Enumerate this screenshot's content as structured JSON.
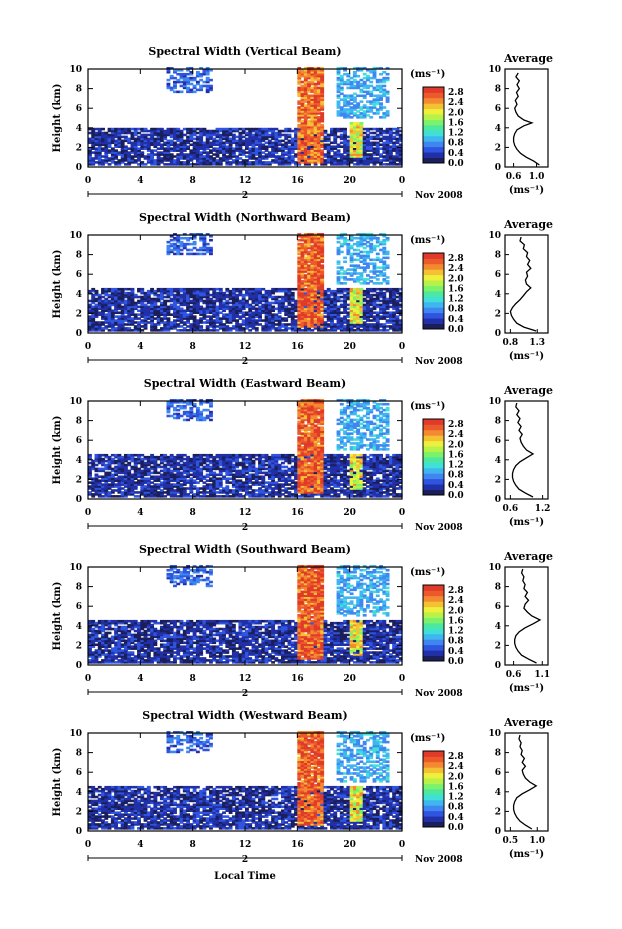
{
  "figure": {
    "xlabel": "Local Time",
    "date_label": "Nov 2008",
    "day_label": "2",
    "unit_label": "(ms⁻¹)",
    "avg_title": "Average",
    "avg_xlabel": "(ms⁻¹)"
  },
  "colors": [
    "#1a1f5c",
    "#2230a8",
    "#2f55e0",
    "#3f86f0",
    "#3fb6f0",
    "#40e0d8",
    "#4ce8a0",
    "#7cf26a",
    "#b6f24a",
    "#eef03c",
    "#f4c034",
    "#f48a30",
    "#ec5a2c",
    "#e03a2a"
  ],
  "chart_data": [
    {
      "type": "heatmap",
      "title": "Spectral Width (Vertical Beam)",
      "ylabel": "Height (km)",
      "x_ticks": [
        "0",
        "4",
        "8",
        "12",
        "16",
        "20",
        "0"
      ],
      "y_ticks": [
        "0",
        "2",
        "4",
        "6",
        "8",
        "10"
      ],
      "xlim": [
        0,
        24
      ],
      "ylim": [
        0,
        10
      ],
      "colorbar": {
        "ticks": [
          "0.0",
          "0.4",
          "0.8",
          "1.2",
          "1.6",
          "2.0",
          "2.4",
          "2.8"
        ],
        "range": [
          0.0,
          3.0
        ]
      },
      "features": [
        {
          "x0": 0,
          "x1": 24,
          "y0": 0.2,
          "y1": 4.0,
          "value": 0.3
        },
        {
          "x0": 16.0,
          "x1": 18.0,
          "y0": 0.3,
          "y1": 10.0,
          "value": 2.6
        },
        {
          "x0": 20.0,
          "x1": 21.0,
          "y0": 1.0,
          "y1": 4.5,
          "value": 2.0
        },
        {
          "x0": 6.0,
          "x1": 9.5,
          "y0": 7.5,
          "y1": 10.0,
          "value": 0.6
        },
        {
          "x0": 19.0,
          "x1": 23.0,
          "y0": 5.0,
          "y1": 10.0,
          "value": 0.9
        }
      ],
      "average": {
        "title": "Average",
        "x_ticks": [
          "0.6",
          "1.0"
        ],
        "y_ticks": [
          "0",
          "2",
          "4",
          "6",
          "8",
          "10"
        ],
        "xlim": [
          0.45,
          1.2
        ],
        "ylim": [
          0,
          10
        ],
        "profile": [
          [
            0.2,
            1.05
          ],
          [
            0.6,
            0.95
          ],
          [
            1.0,
            0.82
          ],
          [
            1.4,
            0.72
          ],
          [
            1.8,
            0.66
          ],
          [
            2.2,
            0.62
          ],
          [
            2.6,
            0.6
          ],
          [
            3.0,
            0.6
          ],
          [
            3.4,
            0.62
          ],
          [
            3.8,
            0.66
          ],
          [
            4.2,
            0.78
          ],
          [
            4.5,
            0.92
          ],
          [
            4.8,
            0.78
          ],
          [
            5.2,
            0.68
          ],
          [
            5.6,
            0.64
          ],
          [
            6.0,
            0.62
          ],
          [
            6.4,
            0.66
          ],
          [
            6.8,
            0.63
          ],
          [
            7.2,
            0.68
          ],
          [
            7.6,
            0.65
          ],
          [
            8.0,
            0.7
          ],
          [
            8.4,
            0.66
          ],
          [
            8.8,
            0.7
          ],
          [
            9.2,
            0.64
          ],
          [
            9.6,
            0.68
          ]
        ]
      }
    },
    {
      "type": "heatmap",
      "title": "Spectral Width (Northward Beam)",
      "ylabel": "Height (km)",
      "x_ticks": [
        "0",
        "4",
        "8",
        "12",
        "16",
        "20",
        "0"
      ],
      "y_ticks": [
        "0",
        "2",
        "4",
        "6",
        "8",
        "10"
      ],
      "xlim": [
        0,
        24
      ],
      "ylim": [
        0,
        10
      ],
      "colorbar": {
        "ticks": [
          "0.0",
          "0.4",
          "0.8",
          "1.2",
          "1.6",
          "2.0",
          "2.4",
          "2.8"
        ],
        "range": [
          0.0,
          3.0
        ]
      },
      "features": [
        {
          "x0": 0,
          "x1": 24,
          "y0": 0.2,
          "y1": 4.5,
          "value": 0.3
        },
        {
          "x0": 16.0,
          "x1": 18.0,
          "y0": 0.5,
          "y1": 10.0,
          "value": 2.7
        },
        {
          "x0": 20.0,
          "x1": 21.0,
          "y0": 1.0,
          "y1": 4.5,
          "value": 2.0
        },
        {
          "x0": 6.0,
          "x1": 9.5,
          "y0": 8.0,
          "y1": 10.0,
          "value": 0.6
        },
        {
          "x0": 19.0,
          "x1": 23.0,
          "y0": 5.0,
          "y1": 10.0,
          "value": 0.9
        }
      ],
      "average": {
        "title": "Average",
        "x_ticks": [
          "0.8",
          "1.3"
        ],
        "y_ticks": [
          "0",
          "2",
          "4",
          "6",
          "8",
          "10"
        ],
        "xlim": [
          0.7,
          1.5
        ],
        "ylim": [
          0,
          10
        ],
        "profile": [
          [
            0.2,
            1.28
          ],
          [
            0.6,
            1.05
          ],
          [
            1.0,
            0.92
          ],
          [
            1.4,
            0.86
          ],
          [
            1.8,
            0.82
          ],
          [
            2.2,
            0.8
          ],
          [
            2.6,
            0.84
          ],
          [
            3.0,
            0.9
          ],
          [
            3.4,
            0.98
          ],
          [
            3.8,
            1.04
          ],
          [
            4.2,
            1.1
          ],
          [
            4.6,
            1.18
          ],
          [
            5.0,
            1.1
          ],
          [
            5.4,
            1.08
          ],
          [
            5.8,
            1.12
          ],
          [
            6.2,
            1.1
          ],
          [
            6.6,
            1.18
          ],
          [
            7.0,
            1.12
          ],
          [
            7.4,
            1.16
          ],
          [
            7.8,
            1.1
          ],
          [
            8.2,
            1.12
          ],
          [
            8.6,
            1.04
          ],
          [
            9.0,
            1.06
          ],
          [
            9.4,
            0.98
          ],
          [
            9.8,
            1.0
          ]
        ]
      }
    },
    {
      "type": "heatmap",
      "title": "Spectral Width (Eastward Beam)",
      "ylabel": "Height (km)",
      "x_ticks": [
        "0",
        "4",
        "8",
        "12",
        "16",
        "20",
        "0"
      ],
      "y_ticks": [
        "0",
        "2",
        "4",
        "6",
        "8",
        "10"
      ],
      "xlim": [
        0,
        24
      ],
      "ylim": [
        0,
        10
      ],
      "colorbar": {
        "ticks": [
          "0.0",
          "0.4",
          "0.8",
          "1.2",
          "1.6",
          "2.0",
          "2.4",
          "2.8"
        ],
        "range": [
          0.0,
          3.0
        ]
      },
      "features": [
        {
          "x0": 0,
          "x1": 24,
          "y0": 0.2,
          "y1": 4.5,
          "value": 0.3
        },
        {
          "x0": 16.0,
          "x1": 18.0,
          "y0": 0.5,
          "y1": 10.0,
          "value": 2.7
        },
        {
          "x0": 20.0,
          "x1": 21.0,
          "y0": 1.0,
          "y1": 4.5,
          "value": 2.0
        },
        {
          "x0": 6.0,
          "x1": 9.5,
          "y0": 8.0,
          "y1": 10.0,
          "value": 0.6
        },
        {
          "x0": 19.0,
          "x1": 23.0,
          "y0": 5.0,
          "y1": 10.0,
          "value": 0.9
        }
      ],
      "average": {
        "title": "Average",
        "x_ticks": [
          "0.6",
          "1.2"
        ],
        "y_ticks": [
          "0",
          "2",
          "4",
          "6",
          "8",
          "10"
        ],
        "xlim": [
          0.5,
          1.3
        ],
        "ylim": [
          0,
          10
        ],
        "profile": [
          [
            0.2,
            1.02
          ],
          [
            0.6,
            0.88
          ],
          [
            1.0,
            0.76
          ],
          [
            1.4,
            0.7
          ],
          [
            1.8,
            0.66
          ],
          [
            2.2,
            0.64
          ],
          [
            2.6,
            0.64
          ],
          [
            3.0,
            0.66
          ],
          [
            3.4,
            0.7
          ],
          [
            3.8,
            0.78
          ],
          [
            4.2,
            0.9
          ],
          [
            4.6,
            1.02
          ],
          [
            5.0,
            0.9
          ],
          [
            5.4,
            0.84
          ],
          [
            5.8,
            0.8
          ],
          [
            6.2,
            0.78
          ],
          [
            6.6,
            0.82
          ],
          [
            7.0,
            0.76
          ],
          [
            7.4,
            0.8
          ],
          [
            7.8,
            0.74
          ],
          [
            8.2,
            0.78
          ],
          [
            8.6,
            0.72
          ],
          [
            9.0,
            0.76
          ],
          [
            9.4,
            0.7
          ],
          [
            9.8,
            0.72
          ]
        ]
      }
    },
    {
      "type": "heatmap",
      "title": "Spectral Width (Southward Beam)",
      "ylabel": "Height (km)",
      "x_ticks": [
        "0",
        "4",
        "8",
        "12",
        "16",
        "20",
        "0"
      ],
      "y_ticks": [
        "0",
        "2",
        "4",
        "6",
        "8",
        "10"
      ],
      "xlim": [
        0,
        24
      ],
      "ylim": [
        0,
        10
      ],
      "colorbar": {
        "ticks": [
          "0.0",
          "0.4",
          "0.8",
          "1.2",
          "1.6",
          "2.0",
          "2.4",
          "2.8"
        ],
        "range": [
          0.0,
          3.0
        ]
      },
      "features": [
        {
          "x0": 0,
          "x1": 24,
          "y0": 0.2,
          "y1": 4.5,
          "value": 0.3
        },
        {
          "x0": 16.0,
          "x1": 18.0,
          "y0": 0.5,
          "y1": 10.0,
          "value": 2.7
        },
        {
          "x0": 20.0,
          "x1": 21.0,
          "y0": 1.0,
          "y1": 4.5,
          "value": 2.0
        },
        {
          "x0": 6.0,
          "x1": 9.5,
          "y0": 8.0,
          "y1": 10.0,
          "value": 0.6
        },
        {
          "x0": 19.0,
          "x1": 23.0,
          "y0": 5.0,
          "y1": 10.0,
          "value": 0.9
        }
      ],
      "average": {
        "title": "Average",
        "x_ticks": [
          "0.6",
          "1.1"
        ],
        "y_ticks": [
          "0",
          "2",
          "4",
          "6",
          "8",
          "10"
        ],
        "xlim": [
          0.45,
          1.2
        ],
        "ylim": [
          0,
          10
        ],
        "profile": [
          [
            0.2,
            1.0
          ],
          [
            0.6,
            0.86
          ],
          [
            1.0,
            0.74
          ],
          [
            1.4,
            0.68
          ],
          [
            1.8,
            0.64
          ],
          [
            2.2,
            0.62
          ],
          [
            2.6,
            0.62
          ],
          [
            3.0,
            0.64
          ],
          [
            3.4,
            0.7
          ],
          [
            3.8,
            0.8
          ],
          [
            4.2,
            0.94
          ],
          [
            4.6,
            1.06
          ],
          [
            5.0,
            0.92
          ],
          [
            5.4,
            0.84
          ],
          [
            5.8,
            0.78
          ],
          [
            6.2,
            0.8
          ],
          [
            6.6,
            0.86
          ],
          [
            7.0,
            0.8
          ],
          [
            7.4,
            0.84
          ],
          [
            7.8,
            0.78
          ],
          [
            8.2,
            0.8
          ],
          [
            8.6,
            0.76
          ],
          [
            9.0,
            0.78
          ],
          [
            9.4,
            0.74
          ],
          [
            9.8,
            0.76
          ]
        ]
      }
    },
    {
      "type": "heatmap",
      "title": "Spectral Width (Westward Beam)",
      "ylabel": "Height (km)",
      "x_ticks": [
        "0",
        "4",
        "8",
        "12",
        "16",
        "20",
        "0"
      ],
      "y_ticks": [
        "0",
        "2",
        "4",
        "6",
        "8",
        "10"
      ],
      "xlim": [
        0,
        24
      ],
      "ylim": [
        0,
        10
      ],
      "colorbar": {
        "ticks": [
          "0.0",
          "0.4",
          "0.8",
          "1.2",
          "1.6",
          "2.0",
          "2.4",
          "2.8"
        ],
        "range": [
          0.0,
          3.0
        ]
      },
      "features": [
        {
          "x0": 0,
          "x1": 24,
          "y0": 0.2,
          "y1": 4.5,
          "value": 0.3
        },
        {
          "x0": 16.0,
          "x1": 18.0,
          "y0": 0.5,
          "y1": 10.0,
          "value": 2.7
        },
        {
          "x0": 20.0,
          "x1": 21.0,
          "y0": 1.0,
          "y1": 4.5,
          "value": 2.0
        },
        {
          "x0": 6.0,
          "x1": 9.5,
          "y0": 8.0,
          "y1": 10.0,
          "value": 0.6
        },
        {
          "x0": 19.0,
          "x1": 23.0,
          "y0": 5.0,
          "y1": 10.0,
          "value": 0.9
        }
      ],
      "average": {
        "title": "Average",
        "x_ticks": [
          "0.5",
          "1.0"
        ],
        "y_ticks": [
          "0",
          "2",
          "4",
          "6",
          "8",
          "10"
        ],
        "xlim": [
          0.4,
          1.2
        ],
        "ylim": [
          0,
          10
        ],
        "profile": [
          [
            0.2,
            0.9
          ],
          [
            0.6,
            0.78
          ],
          [
            1.0,
            0.68
          ],
          [
            1.4,
            0.62
          ],
          [
            1.8,
            0.58
          ],
          [
            2.2,
            0.56
          ],
          [
            2.6,
            0.56
          ],
          [
            3.0,
            0.58
          ],
          [
            3.4,
            0.62
          ],
          [
            3.8,
            0.72
          ],
          [
            4.2,
            0.86
          ],
          [
            4.6,
            0.98
          ],
          [
            5.0,
            0.86
          ],
          [
            5.4,
            0.78
          ],
          [
            5.8,
            0.74
          ],
          [
            6.2,
            0.72
          ],
          [
            6.6,
            0.78
          ],
          [
            7.0,
            0.72
          ],
          [
            7.4,
            0.76
          ],
          [
            7.8,
            0.7
          ],
          [
            8.2,
            0.72
          ],
          [
            8.6,
            0.68
          ],
          [
            9.0,
            0.7
          ],
          [
            9.4,
            0.66
          ],
          [
            9.8,
            0.68
          ]
        ]
      }
    }
  ]
}
